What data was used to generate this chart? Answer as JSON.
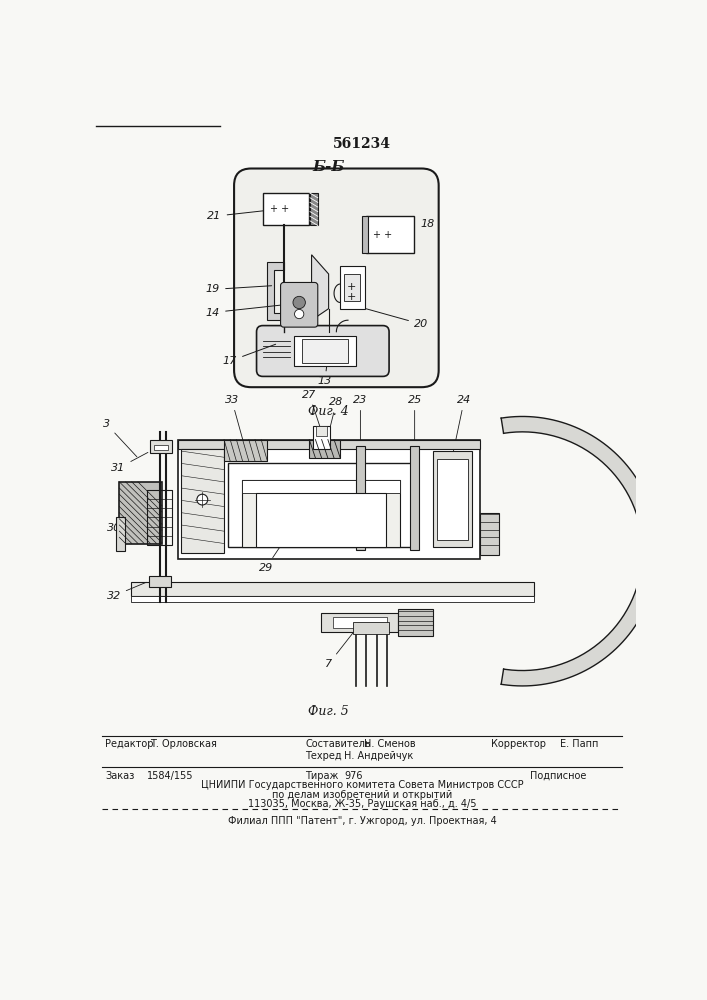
{
  "patent_number": "561234",
  "fig4_label": "Б-Б",
  "fig4_caption": "Фиг. 4",
  "fig5_caption": "Фиг. 5",
  "editor_label": "Редактор",
  "editor_name": "Т. Орловская",
  "composer_label": "Составитель",
  "composer_name": "Н. Сменов",
  "corrector_label": "Корректор",
  "corrector_name": "Е. Папп",
  "techred_label": "Техред",
  "techred_name": "Н. Андрейчук",
  "order_label": "Заказ",
  "order_value": "1584/155",
  "tirage_label": "Тираж",
  "tirage_value": "976",
  "subscription": "Подписное",
  "tsniipi_line1": "ЦНИИПИ Государственного комитета Совета Министров СССР",
  "tsniipi_line2": "по делам изобретений и открытий",
  "tsniipi_line3": "113035, Москва, Ж-35, Раушская наб., д. 4/5",
  "patent_branch": "Филиал ППП \"Патент\", г. Ужгород, ул. Проектная, 4",
  "bg_color": "#f8f8f5",
  "line_color": "#1a1a1a",
  "text_color": "#1a1a1a"
}
